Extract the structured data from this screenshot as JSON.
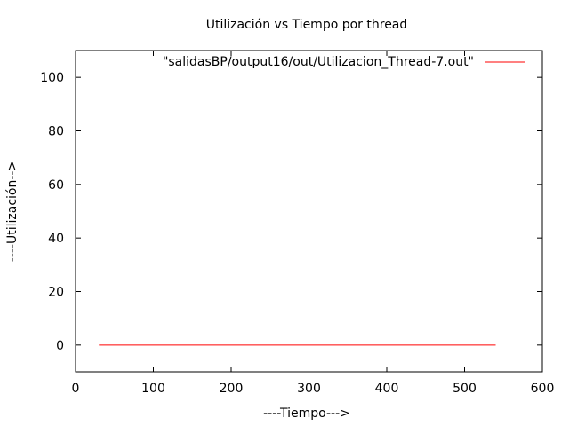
{
  "chart_data": {
    "type": "line",
    "title": "Utilización vs Tiempo por thread",
    "xlabel": "----Tiempo--->",
    "ylabel": "----Utilización-->",
    "xlim": [
      0,
      600
    ],
    "ylim": [
      -10,
      110
    ],
    "xticks": [
      0,
      100,
      200,
      300,
      400,
      500,
      600
    ],
    "yticks": [
      0,
      20,
      40,
      60,
      80,
      100
    ],
    "grid": false,
    "legend_position": "top-right",
    "series": [
      {
        "name": "\"salidasBP/output16/out/Utilizacion_Thread-7.out\"",
        "color": "#ff0000",
        "x": [
          30,
          540
        ],
        "y": [
          0,
          0
        ]
      }
    ]
  }
}
